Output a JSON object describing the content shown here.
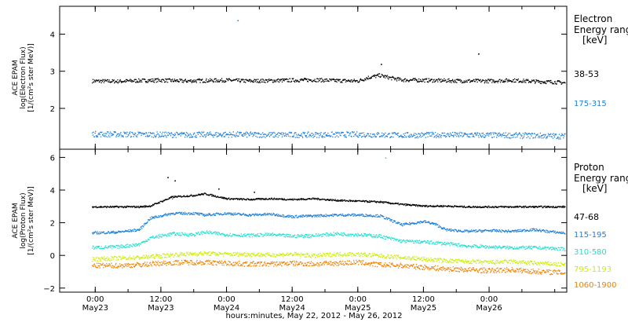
{
  "chart_data": [
    {
      "type": "scatter",
      "panel": "electron",
      "ylabel_lines": [
        "ACE EPAM",
        "log(Electron Flux)",
        "[1/(cm²s ster MeV)]"
      ],
      "ylim": [
        0.9,
        4.75
      ],
      "yticks": [
        2,
        3,
        4
      ],
      "ytick_labels": [
        "2",
        "3",
        "4"
      ],
      "legend_title_lines": [
        "Electron",
        "Energy range",
        "[keV]"
      ],
      "series": [
        {
          "name": "38-53",
          "color": "#000000",
          "x": [
            -0.6,
            4,
            8,
            12,
            16,
            20,
            24,
            28,
            32,
            36,
            40,
            44,
            48,
            50,
            52,
            54,
            56,
            60,
            64,
            68,
            72,
            76,
            80,
            84,
            85.8
          ],
          "y": [
            2.75,
            2.74,
            2.76,
            2.77,
            2.75,
            2.76,
            2.77,
            2.75,
            2.76,
            2.77,
            2.78,
            2.76,
            2.75,
            2.85,
            2.9,
            2.83,
            2.78,
            2.77,
            2.76,
            2.75,
            2.75,
            2.77,
            2.74,
            2.72,
            2.7
          ]
        },
        {
          "name": "175-315",
          "color": "#1e7fd8",
          "x": [
            -0.6,
            8,
            16,
            24,
            32,
            40,
            48,
            56,
            64,
            72,
            80,
            85.8
          ],
          "y": [
            1.32,
            1.31,
            1.3,
            1.31,
            1.3,
            1.3,
            1.31,
            1.29,
            1.3,
            1.29,
            1.28,
            1.26
          ]
        }
      ]
    },
    {
      "type": "scatter",
      "panel": "proton",
      "ylabel_lines": [
        "ACE EPAM",
        "log(Proton Flux)",
        "[1/(cm²s ster MeV)]"
      ],
      "ylim": [
        -2.25,
        6.5
      ],
      "yticks": [
        -2,
        0,
        2,
        4,
        6
      ],
      "ytick_labels": [
        "−2",
        "0",
        "2",
        "4",
        "6"
      ],
      "legend_title_lines": [
        "Proton",
        "Energy range",
        "[keV]"
      ],
      "series": [
        {
          "name": "47-68",
          "color": "#000000",
          "x": [
            -0.6,
            4,
            8,
            10,
            14,
            18,
            20,
            24,
            28,
            32,
            36,
            40,
            44,
            48,
            52,
            56,
            60,
            64,
            68,
            72,
            76,
            80,
            84,
            85.8
          ],
          "y": [
            3.0,
            3.0,
            3.0,
            3.05,
            3.6,
            3.7,
            3.8,
            3.5,
            3.45,
            3.5,
            3.45,
            3.5,
            3.4,
            3.35,
            3.3,
            3.15,
            3.05,
            3.05,
            3.0,
            3.0,
            3.0,
            3.0,
            3.0,
            3.0
          ]
        },
        {
          "name": "115-195",
          "color": "#1e7fd8",
          "x": [
            -0.6,
            4,
            8,
            10,
            14,
            18,
            20,
            24,
            28,
            32,
            36,
            40,
            44,
            48,
            52,
            56,
            60,
            62,
            64,
            68,
            72,
            76,
            80,
            84,
            85.8
          ],
          "y": [
            1.4,
            1.45,
            1.6,
            2.3,
            2.6,
            2.6,
            2.5,
            2.6,
            2.5,
            2.55,
            2.4,
            2.45,
            2.5,
            2.5,
            2.45,
            1.9,
            2.1,
            1.95,
            1.6,
            1.5,
            1.55,
            1.5,
            1.6,
            1.45,
            1.4
          ]
        },
        {
          "name": "310-580",
          "color": "#22e0d0",
          "x": [
            -0.6,
            4,
            8,
            10,
            14,
            18,
            20,
            24,
            28,
            32,
            36,
            40,
            44,
            48,
            52,
            56,
            60,
            64,
            68,
            72,
            76,
            80,
            84,
            85.8
          ],
          "y": [
            0.5,
            0.55,
            0.7,
            1.1,
            1.35,
            1.3,
            1.45,
            1.3,
            1.25,
            1.3,
            1.2,
            1.25,
            1.35,
            1.3,
            1.2,
            0.9,
            0.85,
            0.75,
            0.6,
            0.55,
            0.5,
            0.5,
            0.45,
            0.4
          ]
        },
        {
          "name": "795-1193",
          "color": "#ccee00",
          "x": [
            -0.6,
            4,
            8,
            12,
            16,
            20,
            24,
            28,
            32,
            36,
            40,
            44,
            48,
            52,
            56,
            60,
            64,
            68,
            72,
            76,
            80,
            84,
            85.8
          ],
          "y": [
            -0.2,
            -0.15,
            -0.1,
            0.0,
            0.1,
            0.15,
            0.1,
            0.1,
            0.05,
            0.1,
            0.0,
            0.1,
            0.1,
            0.0,
            -0.1,
            -0.2,
            -0.3,
            -0.35,
            -0.4,
            -0.35,
            -0.45,
            -0.5,
            -0.55
          ]
        },
        {
          "name": "1060-1900",
          "color": "#f08000",
          "x": [
            -0.6,
            4,
            8,
            12,
            16,
            20,
            24,
            28,
            32,
            36,
            40,
            44,
            48,
            52,
            56,
            60,
            64,
            68,
            72,
            76,
            80,
            84,
            85.8
          ],
          "y": [
            -0.6,
            -0.6,
            -0.55,
            -0.45,
            -0.4,
            -0.4,
            -0.45,
            -0.5,
            -0.5,
            -0.45,
            -0.5,
            -0.45,
            -0.4,
            -0.55,
            -0.6,
            -0.7,
            -0.8,
            -0.85,
            -0.9,
            -0.85,
            -0.95,
            -1.0,
            -1.05
          ]
        }
      ],
      "spikes": [
        {
          "x": 13.2,
          "y": 4.8,
          "color": "#000000"
        },
        {
          "x": 14.5,
          "y": 4.6,
          "color": "#000000"
        },
        {
          "x": 14.0,
          "y": 3.5,
          "color": "#1e7fd8"
        },
        {
          "x": 22.5,
          "y": 4.1,
          "color": "#000000"
        },
        {
          "x": 29.0,
          "y": 3.9,
          "color": "#000000"
        },
        {
          "x": 53.0,
          "y": 6.0,
          "color": "#22e0d0"
        }
      ]
    }
  ],
  "x_axis": {
    "ticks_hours": [
      0,
      12,
      24,
      36,
      48,
      60,
      72
    ],
    "tick_times": [
      "0:00",
      "12:00",
      "0:00",
      "12:00",
      "0:00",
      "12:00",
      "0:00"
    ],
    "tick_dates": [
      "May23",
      "May23",
      "May24",
      "May24",
      "May25",
      "May25",
      "May26"
    ],
    "xlim_hours": [
      -6.5,
      86.2
    ],
    "title": "hours:minutes, May 22, 2012 - May 26, 2012"
  },
  "electron_outliers": [
    {
      "x": 26.0,
      "y": 4.38
    },
    {
      "x": 52.2,
      "y": 3.2
    },
    {
      "x": 70.0,
      "y": 3.48
    }
  ]
}
